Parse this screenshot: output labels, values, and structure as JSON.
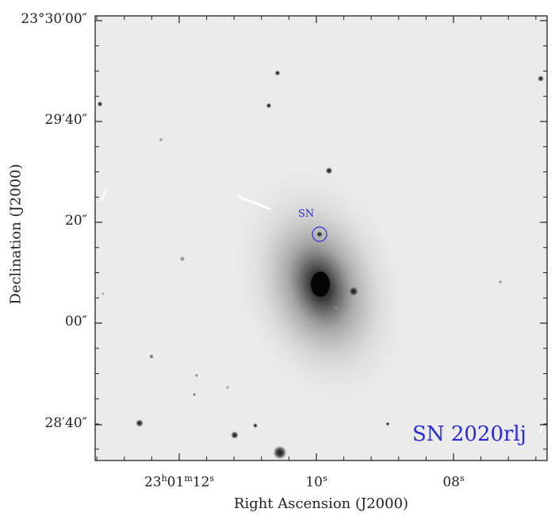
{
  "target": {
    "name": "SN 2020rlj",
    "marker_label": "SN",
    "marker_color": "#2a2ad6"
  },
  "axes": {
    "xlabel": "Right Ascension (J2000)",
    "ylabel": "Declination (J2000)",
    "x_ticks": [
      {
        "pre": "23",
        "h": "h",
        "mid": "01",
        "m": "m",
        "sec": "12",
        "s": "s"
      },
      {
        "pre": "",
        "h": "",
        "mid": "",
        "m": "",
        "sec": "10",
        "s": "s"
      },
      {
        "pre": "",
        "h": "",
        "mid": "",
        "m": "",
        "sec": "08",
        "s": "s"
      }
    ],
    "y_ticks": [
      "23°30′00″",
      "29′40″",
      "20″",
      "00″",
      "28′40″"
    ]
  },
  "image": {
    "type": "grayscale astronomical image (inverted)",
    "background": "#ebebeb"
  }
}
